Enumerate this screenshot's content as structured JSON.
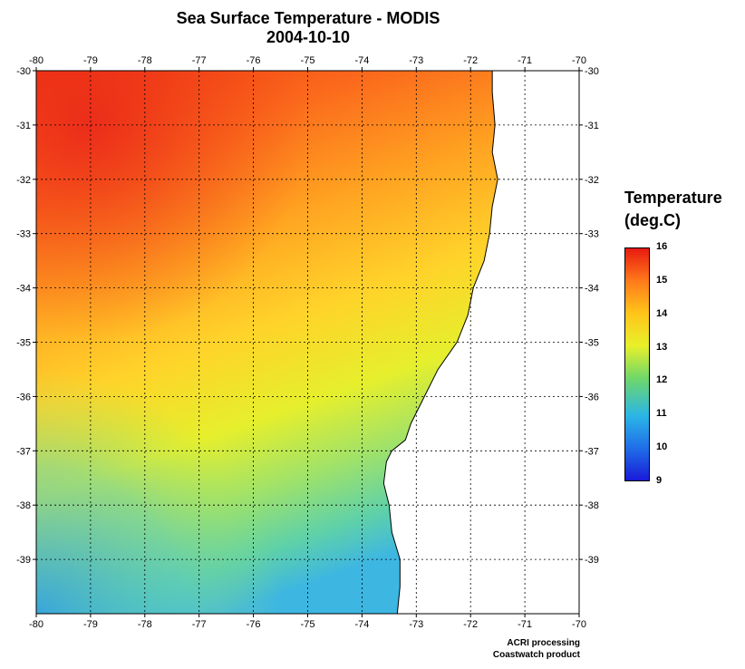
{
  "title": "Sea Surface Temperature - MODIS",
  "date": "2004-10-10",
  "map": {
    "lon_range": [
      -80,
      -70
    ],
    "lat_range": [
      -40,
      -30
    ],
    "lon_ticks": [
      "-80",
      "-79",
      "-78",
      "-77",
      "-76",
      "-75",
      "-74",
      "-73",
      "-72",
      "-71",
      "-70"
    ],
    "lat_ticks": [
      "-30",
      "-31",
      "-32",
      "-33",
      "-34",
      "-35",
      "-36",
      "-37",
      "-38",
      "-39"
    ],
    "grid": "dotted",
    "land_color": "#ffffff",
    "coastline": [
      [
        -71.6,
        -30.0
      ],
      [
        -71.6,
        -30.4
      ],
      [
        -71.55,
        -31.0
      ],
      [
        -71.6,
        -31.5
      ],
      [
        -71.5,
        -32.0
      ],
      [
        -71.6,
        -32.5
      ],
      [
        -71.65,
        -33.0
      ],
      [
        -71.75,
        -33.5
      ],
      [
        -71.95,
        -34.0
      ],
      [
        -72.05,
        -34.5
      ],
      [
        -72.25,
        -35.0
      ],
      [
        -72.6,
        -35.5
      ],
      [
        -72.85,
        -36.0
      ],
      [
        -73.1,
        -36.5
      ],
      [
        -73.2,
        -36.8
      ],
      [
        -73.45,
        -37.0
      ],
      [
        -73.55,
        -37.2
      ],
      [
        -73.6,
        -37.6
      ],
      [
        -73.5,
        -38.0
      ],
      [
        -73.45,
        -38.5
      ],
      [
        -73.3,
        -39.0
      ],
      [
        -73.3,
        -39.5
      ],
      [
        -73.35,
        -40.0
      ]
    ]
  },
  "legend": {
    "title_line1": "Temperature",
    "title_line2": "(deg.C)",
    "ticks": [
      "16",
      "15",
      "14",
      "13",
      "12",
      "11",
      "10",
      "9"
    ],
    "min": 9,
    "max": 16,
    "colors": [
      "#1a1ad8",
      "#1f6fe8",
      "#2bb6e6",
      "#6fd76a",
      "#e8f02a",
      "#ffc51a",
      "#ff7a1a",
      "#e81a10"
    ]
  },
  "credit": {
    "line1": "ACRI processing",
    "line2": "Coastwatch product"
  }
}
